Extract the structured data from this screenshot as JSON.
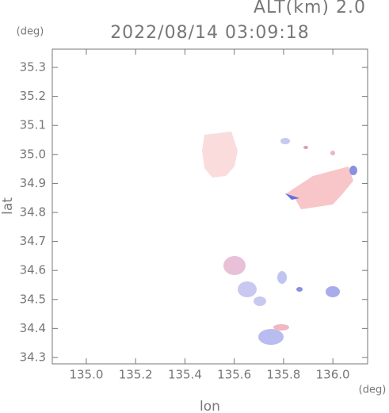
{
  "chart_data": {
    "type": "map",
    "title": "2022/08/14 03:09:18",
    "subtitle": "ALT(km) 2.0",
    "x_label": "lon",
    "x_unit": "(deg)",
    "y_label": "lat",
    "y_unit": "(deg)",
    "xlim": [
      134.862,
      136.141
    ],
    "ylim": [
      34.278,
      35.363
    ],
    "xticks": [
      {
        "value": 135,
        "label": "135.0"
      },
      135.2,
      135.4,
      135.6,
      135.8,
      {
        "value": 136,
        "label": "136.0"
      }
    ],
    "yticks": [
      34.3,
      34.4,
      34.5,
      34.6,
      34.7,
      34.8,
      34.9,
      {
        "value": 35,
        "label": "35.0"
      },
      35.1,
      35.2,
      35.3
    ]
  }
}
